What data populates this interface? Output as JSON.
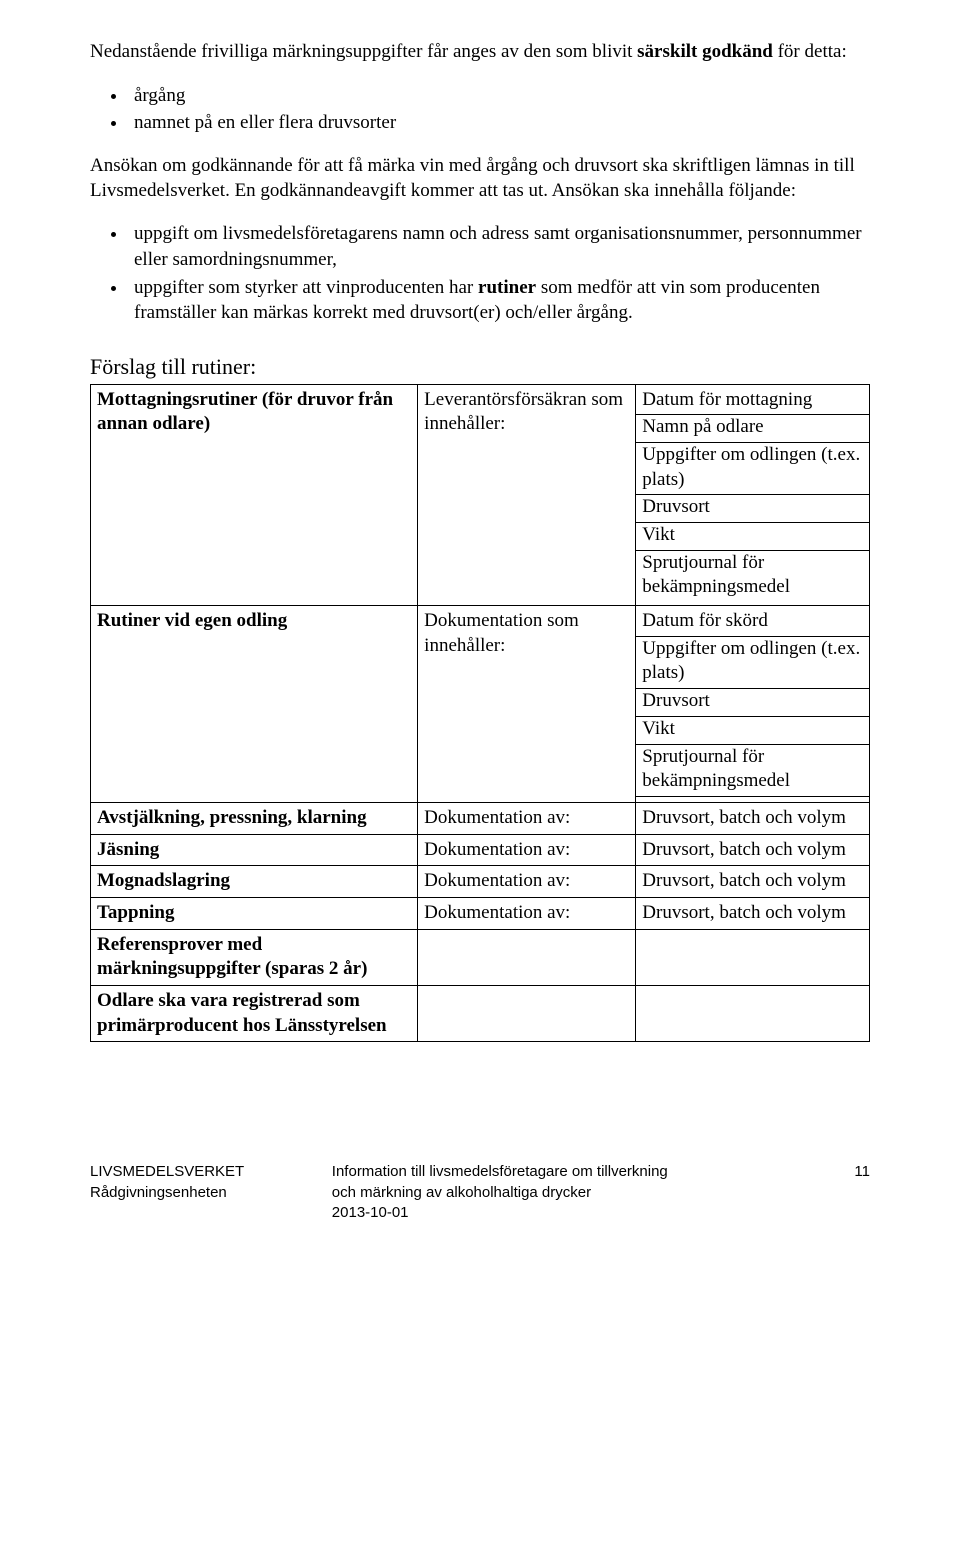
{
  "intro": {
    "line1_pre": "Nedanstående frivilliga märkningsuppgifter får anges av den som blivit ",
    "line1_bold": "särskilt godkänd",
    "line1_post": " för detta:",
    "bullets": [
      "årgång",
      "namnet på en eller flera druvsorter"
    ]
  },
  "para2": "Ansökan om godkännande för att få märka vin med årgång och druvsort ska skriftligen lämnas in till Livsmedelsverket. En godkännandeavgift kommer att tas ut. Ansökan ska innehålla följande:",
  "bullets2": [
    "uppgift om livsmedelsföretagarens namn och adress samt organisationsnummer, personnummer eller samordningsnummer,"
  ],
  "bullet2b_pre": "uppgifter som styrker att vinproducenten har ",
  "bullet2b_bold": "rutiner",
  "bullet2b_post": " som medför att vin som producenten framställer kan märkas korrekt med druvsort(er) och/eller årgång.",
  "subhead": "Förslag till rutiner:",
  "table": {
    "rows": [
      {
        "c1": "Mottagningsrutiner (för druvor från annan odlare)",
        "c2": "Leverantörsförsäkran som innehåller:",
        "c3_items": [
          "Datum för mottagning",
          "Namn på odlare",
          "Uppgifter om odlingen (t.ex. plats)",
          "Druvsort",
          "Vikt",
          "Sprutjournal för bekämpningsmedel"
        ]
      },
      {
        "c1": "Rutiner vid egen odling",
        "c2": "Dokumentation som innehåller:",
        "c3_items": [
          "Datum för skörd",
          "Uppgifter om odlingen (t.ex. plats)",
          "Druvsort",
          "Vikt",
          "Sprutjournal för bekämpningsmedel"
        ]
      },
      {
        "c1": "Avstjälkning, pressning, klarning",
        "c2": "Dokumentation av:",
        "c3": "Druvsort, batch och volym"
      },
      {
        "c1": "Jäsning",
        "c2": "Dokumentation av:",
        "c3": "Druvsort, batch och volym"
      },
      {
        "c1": "Mognadslagring",
        "c2": "Dokumentation av:",
        "c3": "Druvsort, batch och volym"
      },
      {
        "c1": "Tappning",
        "c2": "Dokumentation av:",
        "c3": "Druvsort, batch och volym"
      },
      {
        "c1": "Referensprover med märkningsuppgifter (sparas 2 år)",
        "c2": "",
        "c3": ""
      },
      {
        "c1": "Odlare ska vara registrerad som primärproducent hos Länsstyrelsen",
        "c2": "",
        "c3": ""
      }
    ]
  },
  "footer": {
    "left1": "LIVSMEDELSVERKET",
    "left2": "Rådgivningsenheten",
    "center1": "Information till livsmedelsföretagare om tillverkning",
    "center2": "och märkning av alkoholhaltiga drycker",
    "center3": "2013-10-01",
    "page": "11"
  }
}
